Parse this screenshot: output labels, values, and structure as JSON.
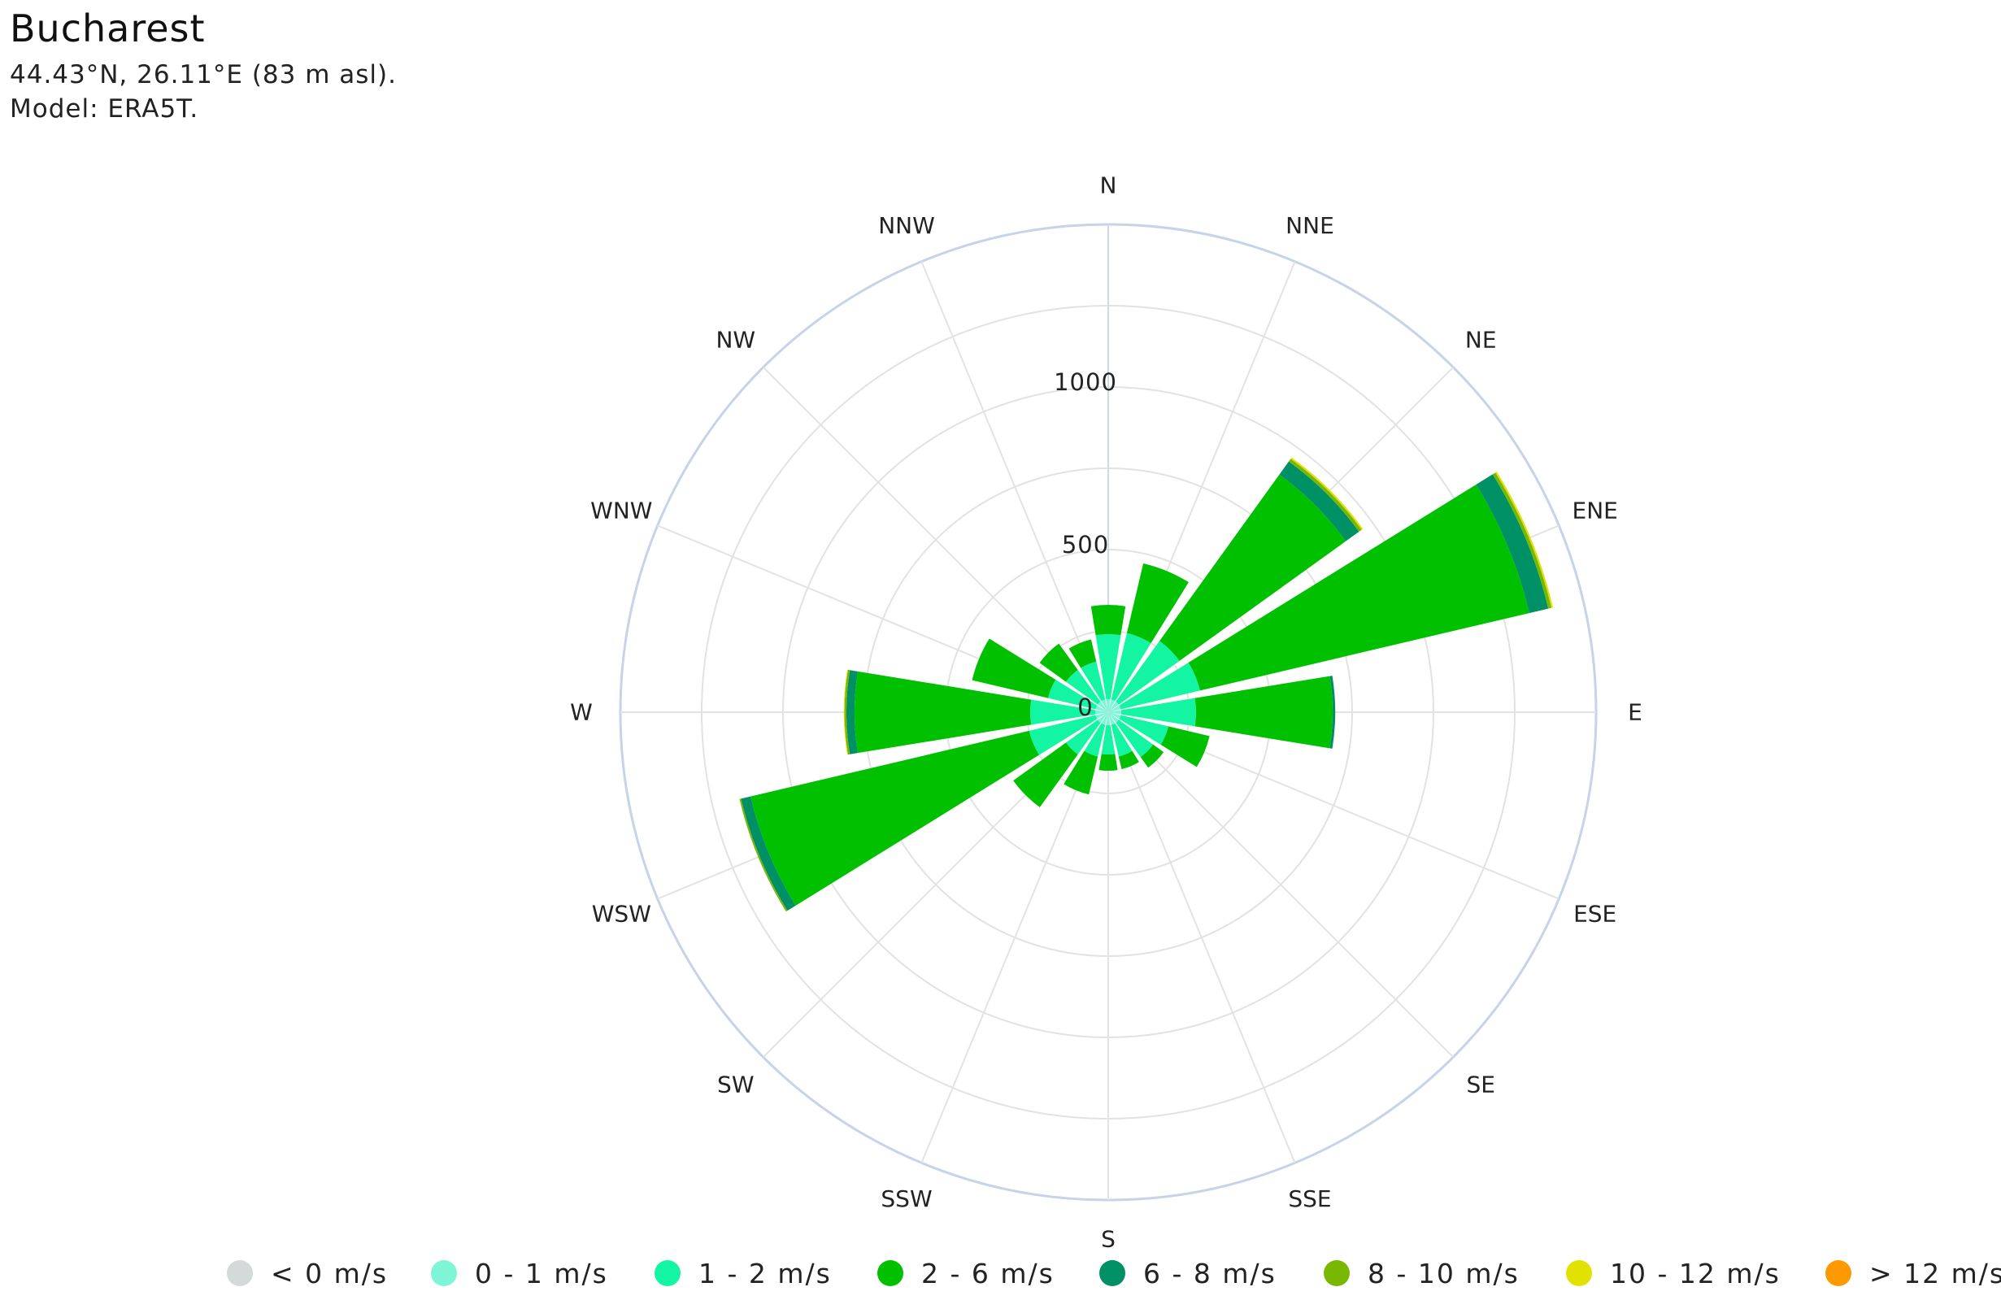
{
  "header": {
    "title": "Bucharest",
    "coords": "44.43°N, 26.11°E (83 m asl).",
    "model": "Model: ERA5T."
  },
  "chart_data": {
    "type": "windrose",
    "directions": [
      "N",
      "NNE",
      "NE",
      "ENE",
      "E",
      "ESE",
      "SE",
      "SSE",
      "S",
      "SSW",
      "SW",
      "WSW",
      "W",
      "WNW",
      "NW",
      "NNW"
    ],
    "radial_ticks": [
      "0",
      "500",
      "1000"
    ],
    "rmax": 1500,
    "stack_base": 0,
    "grid": true,
    "legend_position": "bottom",
    "series": [
      {
        "name": "< 0 m/s",
        "color": "#d4d9d9",
        "values": [
          0,
          0,
          0,
          0,
          0,
          0,
          0,
          0,
          0,
          0,
          0,
          0,
          0,
          0,
          0,
          0
        ]
      },
      {
        "name": "0 - 1 m/s",
        "color": "#7ff5d8",
        "values": [
          40,
          40,
          40,
          40,
          40,
          40,
          40,
          40,
          40,
          40,
          40,
          40,
          40,
          40,
          40,
          40
        ]
      },
      {
        "name": "1 - 2 m/s",
        "color": "#14f5a4",
        "values": [
          200,
          210,
          230,
          250,
          230,
          150,
          130,
          100,
          90,
          100,
          120,
          210,
          200,
          150,
          120,
          120
        ]
      },
      {
        "name": "2 - 6 m/s",
        "color": "#00c000",
        "values": [
          90,
          220,
          630,
          1040,
          420,
          130,
          40,
          40,
          50,
          120,
          200,
          880,
          540,
          240,
          100,
          70
        ]
      },
      {
        "name": "6 - 8 m/s",
        "color": "#009065",
        "values": [
          0,
          0,
          50,
          60,
          8,
          0,
          0,
          0,
          0,
          0,
          0,
          30,
          25,
          0,
          0,
          0
        ]
      },
      {
        "name": "8 - 10 m/s",
        "color": "#79b800",
        "values": [
          0,
          0,
          10,
          10,
          0,
          0,
          0,
          0,
          0,
          0,
          0,
          5,
          6,
          0,
          0,
          0
        ]
      },
      {
        "name": "10 - 12 m/s",
        "color": "#e2e200",
        "values": [
          0,
          0,
          5,
          5,
          0,
          0,
          0,
          0,
          0,
          0,
          0,
          0,
          2,
          0,
          0,
          0
        ]
      },
      {
        "name": "> 12 m/s",
        "color": "#ff9900",
        "values": [
          0,
          0,
          0,
          0,
          0,
          0,
          0,
          0,
          0,
          0,
          0,
          0,
          0,
          0,
          0,
          0
        ]
      }
    ]
  }
}
